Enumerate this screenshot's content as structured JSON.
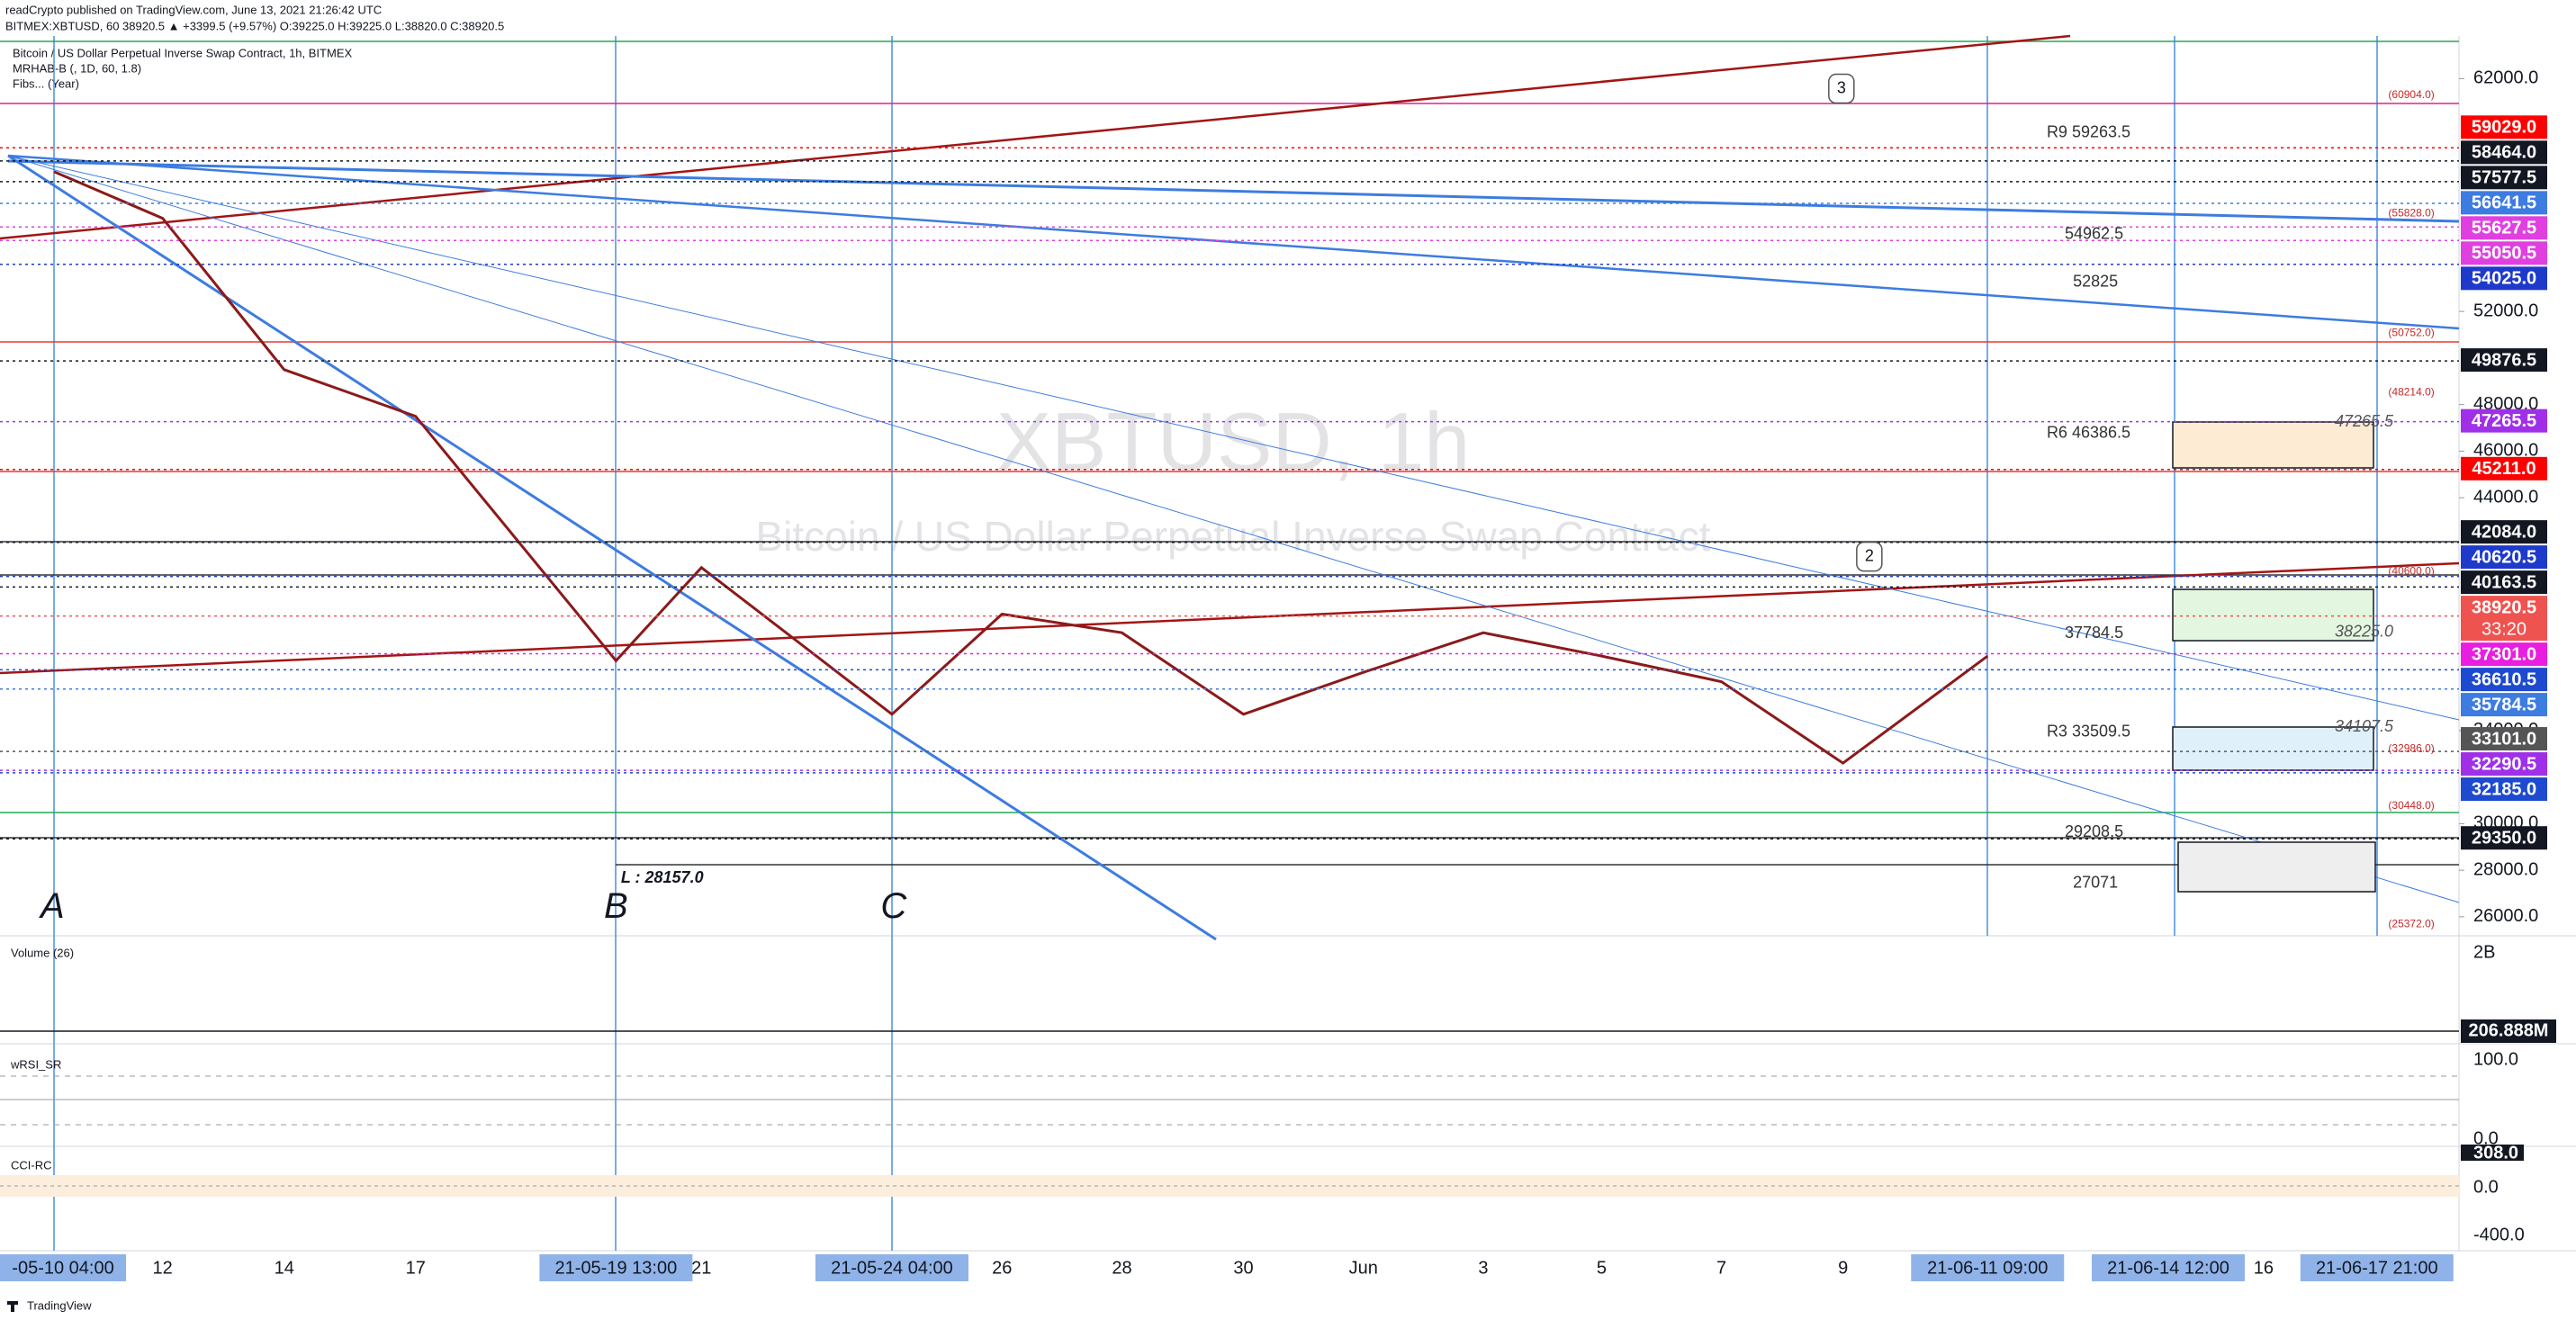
{
  "header": {
    "publisher": "readCrypto published on TradingView.com, June 13, 2021 21:26:42 UTC",
    "symbol_line": "BITMEX:XBTUSD, 60 38920.5 ▲ +3399.5 (+9.57%) O:39225.0 H:39225.0 L:38820.0 C:38920.5"
  },
  "footer": {
    "brand": "TradingView"
  },
  "chart_data": {
    "type": "line",
    "title": "Bitcoin / US Dollar Perpetual Inverse Swap Contract, 1h, BITMEX",
    "indicators": [
      "MRHAB-B (, 1D, 60, 1.8)",
      "Fibs... (Year)"
    ],
    "watermark": [
      "XBTUSD, 1h",
      "Bitcoin / US Dollar Perpetual Inverse Swap Contract"
    ],
    "categories": [
      "-05-10 04:00",
      "12",
      "14",
      "17",
      "21-05-19 13:00",
      "21",
      "21-05-24 04:00",
      "26",
      "28",
      "30",
      "Jun",
      "3",
      "5",
      "7",
      "9",
      "21-06-11 09:00",
      "21-06-14 12:00",
      "16",
      "21-06-17 21:00"
    ],
    "values": [
      58000,
      56000,
      49500,
      47500,
      37000,
      41000,
      34700,
      39000,
      38200,
      34700,
      36500,
      38200,
      37200,
      36100,
      32600,
      37200,
      null,
      null,
      null
    ],
    "color": "#8b1a1a",
    "ylim": [
      25300,
      63600
    ],
    "yticks": [
      {
        "value": 26000,
        "label": "26000.0"
      },
      {
        "value": 28000,
        "label": "28000.0"
      },
      {
        "value": 30000,
        "label": "30000.0"
      },
      {
        "value": 34000,
        "label": "34000.0"
      },
      {
        "value": 44000,
        "label": "44000.0"
      },
      {
        "value": 46000,
        "label": "46000.0"
      },
      {
        "value": 48000,
        "label": "48000.0"
      },
      {
        "value": 52000,
        "label": "52000.0"
      },
      {
        "value": 62000,
        "label": "62000.0"
      }
    ],
    "grid": false,
    "price_labels": [
      {
        "value": 59029,
        "label": "59029.0",
        "color": "#ff0000"
      },
      {
        "value": 58464,
        "label": "58464.0",
        "color": "#131722"
      },
      {
        "value": 57577.5,
        "label": "57577.5",
        "color": "#131722"
      },
      {
        "value": 56641.5,
        "label": "56641.5",
        "color": "#3d7ce0"
      },
      {
        "value": 55627.5,
        "label": "55627.5",
        "color": "#e040e0"
      },
      {
        "value": 55050.5,
        "label": "55050.5",
        "color": "#e040e0"
      },
      {
        "value": 54025,
        "label": "54025.0",
        "color": "#1e3acb"
      },
      {
        "value": 49876.5,
        "label": "49876.5",
        "color": "#131722"
      },
      {
        "value": 47265.5,
        "label": "47265.5",
        "color": "#a030e8"
      },
      {
        "value": 45211,
        "label": "45211.0",
        "color": "#ff0000"
      },
      {
        "value": 42084,
        "label": "42084.0",
        "color": "#131722"
      },
      {
        "value": 40620.5,
        "label": "40620.5",
        "color": "#1e3acb"
      },
      {
        "value": 40163.5,
        "label": "40163.5",
        "color": "#131722"
      },
      {
        "value": 38920.5,
        "label": "38920.5",
        "sublabel": "33:20",
        "color": "#ef5350"
      },
      {
        "value": 37301,
        "label": "37301.0",
        "color": "#e91ee0"
      },
      {
        "value": 36610.5,
        "label": "36610.5",
        "color": "#1e4ad0"
      },
      {
        "value": 35784.5,
        "label": "35784.5",
        "color": "#3d7ce0"
      },
      {
        "value": 33101,
        "label": "33101.0",
        "color": "#555555"
      },
      {
        "value": 32290.5,
        "label": "32290.5",
        "color": "#a030e8"
      },
      {
        "value": 32185,
        "label": "32185.0",
        "color": "#1e4ad0"
      },
      {
        "value": 29350,
        "label": "29350.0",
        "color": "#131722"
      }
    ],
    "annotations": [
      "R9 59263.5",
      "54962.5",
      "52825",
      "R6 46386.5",
      "37784.5",
      "R3 33509.5",
      "29208.5",
      "27071",
      "L : 28157.0",
      "47265.5",
      "38225.0",
      "34107.5",
      "(60904.0)",
      "(55828.0)",
      "(50752.0)",
      "(48214.0)",
      "(40600.0)",
      "(32986.0)",
      "(30448.0)",
      "(25372.0)",
      "A",
      "B",
      "C",
      "3",
      "2"
    ],
    "panes": [
      {
        "title": "Volume (26)",
        "labels": [
          "2B",
          "206.888M"
        ]
      },
      {
        "title": "wRSI_SR",
        "labels": [
          "100.0",
          "0.0"
        ]
      },
      {
        "title": "CCI-RC",
        "labels": [
          "308.0",
          "0.0",
          "-400.0"
        ]
      }
    ]
  }
}
